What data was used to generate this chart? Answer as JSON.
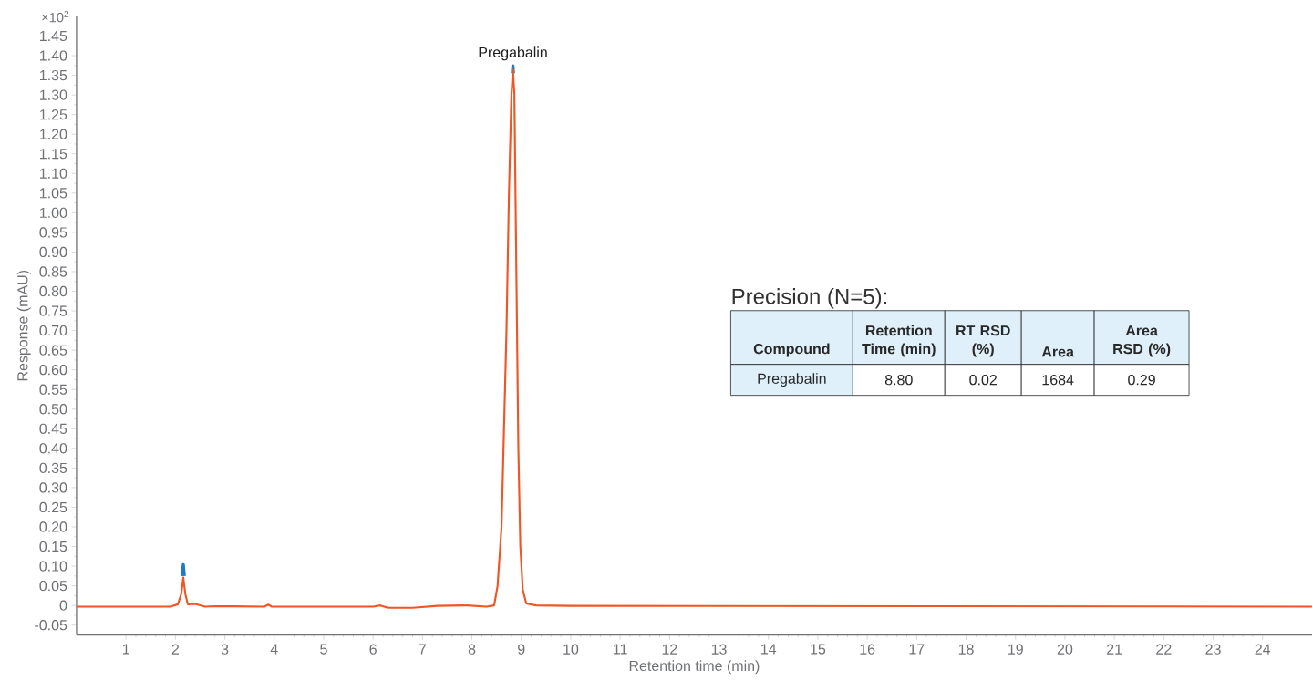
{
  "chart_data": {
    "type": "line",
    "xlabel": "Retention time (min)",
    "ylabel": "Response (mAU)",
    "xlim": [
      0,
      25
    ],
    "ylim": [
      -0.075,
      1.5
    ],
    "xticks": [
      1,
      2,
      3,
      4,
      5,
      6,
      7,
      8,
      9,
      10,
      11,
      12,
      13,
      14,
      15,
      16,
      17,
      18,
      19,
      20,
      21,
      22,
      23,
      24
    ],
    "yticks": [
      {
        "value": -0.05,
        "label": "-0.05"
      },
      {
        "value": 0,
        "label": "0"
      },
      {
        "value": 0.05,
        "label": "0.05"
      },
      {
        "value": 0.1,
        "label": "0.10"
      },
      {
        "value": 0.15,
        "label": "0.15"
      },
      {
        "value": 0.2,
        "label": "0.20"
      },
      {
        "value": 0.25,
        "label": "0.25"
      },
      {
        "value": 0.3,
        "label": "0.30"
      },
      {
        "value": 0.35,
        "label": "0.35"
      },
      {
        "value": 0.4,
        "label": "0.40"
      },
      {
        "value": 0.45,
        "label": "0.45"
      },
      {
        "value": 0.5,
        "label": "0.50"
      },
      {
        "value": 0.55,
        "label": "0.55"
      },
      {
        "value": 0.6,
        "label": "0.60"
      },
      {
        "value": 0.65,
        "label": "0.65"
      },
      {
        "value": 0.7,
        "label": "0.70"
      },
      {
        "value": 0.75,
        "label": "0.75"
      },
      {
        "value": 0.8,
        "label": "0.80"
      },
      {
        "value": 0.85,
        "label": "0.85"
      },
      {
        "value": 0.9,
        "label": "0.90"
      },
      {
        "value": 0.95,
        "label": "0.95"
      },
      {
        "value": 1.0,
        "label": "1.00"
      },
      {
        "value": 1.05,
        "label": "1.05"
      },
      {
        "value": 1.1,
        "label": "1.10"
      },
      {
        "value": 1.15,
        "label": "1.15"
      },
      {
        "value": 1.2,
        "label": "1.20"
      },
      {
        "value": 1.25,
        "label": "1.25"
      },
      {
        "value": 1.3,
        "label": "1.30"
      },
      {
        "value": 1.35,
        "label": "1.35"
      },
      {
        "value": 1.4,
        "label": "1.40"
      },
      {
        "value": 1.45,
        "label": "1.45"
      }
    ],
    "marker": "none",
    "line_style": "solid",
    "series": [
      {
        "color": "#1f7ac8",
        "x": [
          2.14,
          2.16,
          2.18,
          5,
          8.82,
          8.83,
          8.84
        ],
        "values": [
          0.075,
          0.104,
          0.075,
          null,
          1.355,
          1.374,
          1.355
        ]
      },
      {
        "color": "#f05523",
        "x": [
          0,
          1.9,
          2.05,
          2.12,
          2.16,
          2.2,
          2.25,
          2.4,
          2.6,
          2.8,
          3.8,
          3.88,
          3.95,
          6.0,
          6.15,
          6.3,
          6.8,
          7.3,
          7.9,
          8.3,
          8.45,
          8.52,
          8.6,
          8.65,
          8.7,
          8.75,
          8.8,
          8.83,
          8.86,
          8.9,
          8.94,
          8.98,
          9.03,
          9.1,
          9.3,
          10,
          25
        ],
        "values": [
          -0.003,
          -0.003,
          0.003,
          0.03,
          0.071,
          0.03,
          0.003,
          0.004,
          -0.003,
          -0.002,
          -0.003,
          0.002,
          -0.003,
          -0.003,
          0.0,
          -0.006,
          -0.006,
          -0.001,
          0.0,
          -0.003,
          0.0,
          0.05,
          0.2,
          0.45,
          0.7,
          1.05,
          1.3,
          1.365,
          1.3,
          0.85,
          0.4,
          0.15,
          0.04,
          0.005,
          0.0,
          -0.001,
          -0.003
        ]
      }
    ],
    "annotations": [
      "×10$^{2}$",
      {
        "text": "Pregabalin",
        "x": 8.83,
        "y": 1.374
      },
      "Precision (N=5):",
      "Compound",
      "Retention Time (min)",
      "RT RSD (%)",
      "Area",
      "Area RSD (%)",
      "Pregabalin",
      "8.80",
      "0.02",
      "1684",
      "0.29"
    ]
  }
}
